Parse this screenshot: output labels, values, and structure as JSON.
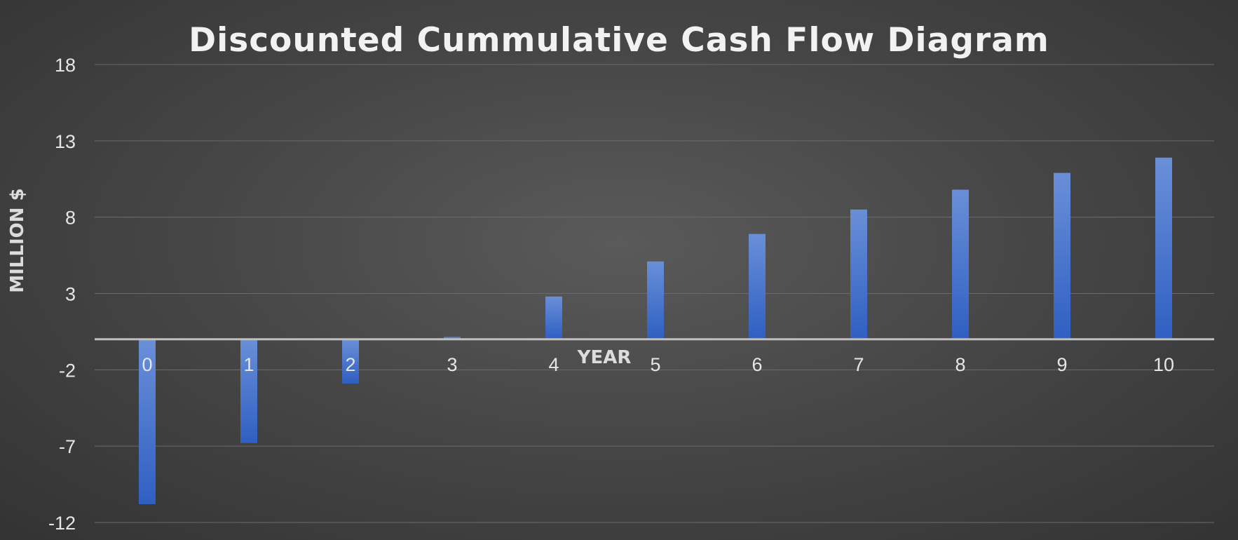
{
  "chart_data": {
    "type": "bar",
    "title": "Discounted Cummulative Cash Flow Diagram",
    "xlabel": "YEAR",
    "ylabel": "MILLION $",
    "categories": [
      "0",
      "1",
      "2",
      "3",
      "4",
      "5",
      "6",
      "7",
      "8",
      "9",
      "10"
    ],
    "values": [
      -10.8,
      -6.8,
      -2.9,
      0.15,
      2.8,
      5.1,
      6.9,
      8.5,
      9.8,
      10.9,
      11.9
    ],
    "ylim": [
      -12,
      18
    ],
    "yticks": [
      18,
      13,
      8,
      3,
      -2,
      -7,
      -12
    ],
    "grid": true,
    "legend": "none",
    "colors": {
      "bar_top": "#6a8fd8",
      "bar_bottom": "#2f5fc2",
      "grid": "#6b6b6b",
      "zero_axis": "#bfbfbf"
    }
  }
}
